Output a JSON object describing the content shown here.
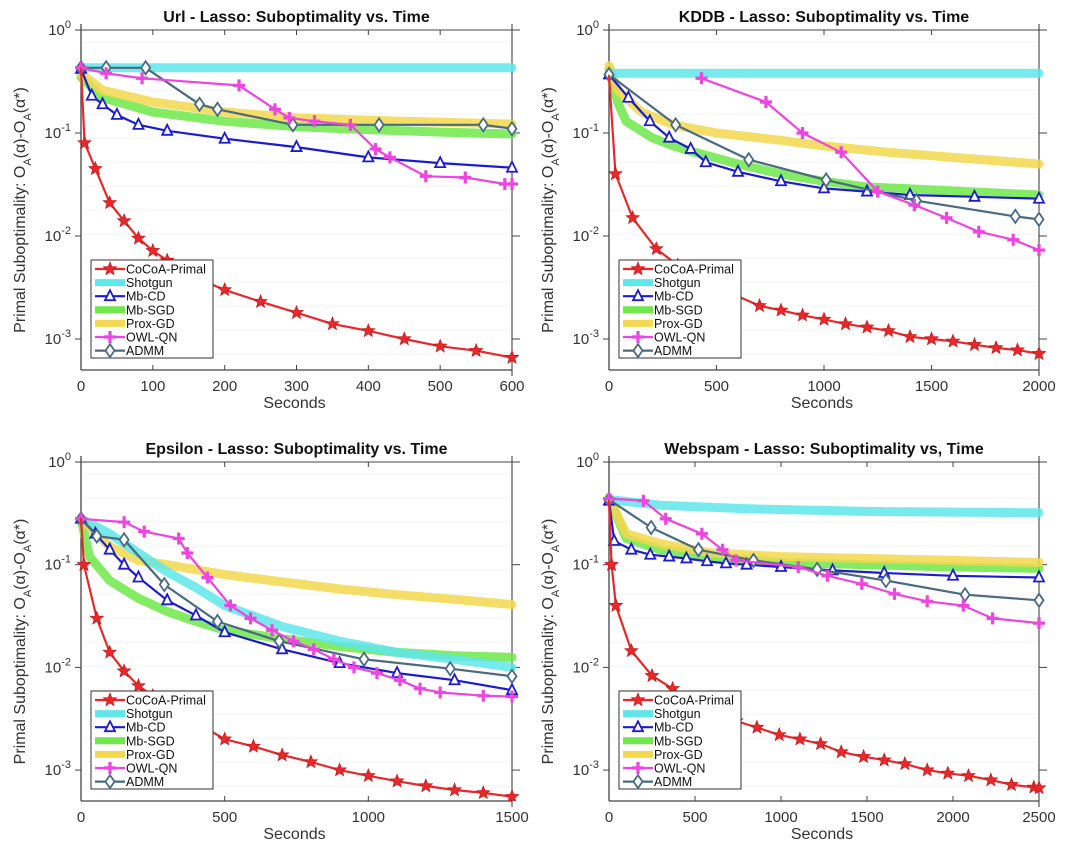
{
  "figure": {
    "legend_entries": [
      "CoCoA-Primal",
      "Shotgun",
      "Mb-CD",
      "Mb-SGD",
      "Prox-GD",
      "OWL-QN",
      "ADMM"
    ]
  },
  "series_styles": {
    "CoCoA-Primal": {
      "color": "#e8282a",
      "marker": "star"
    },
    "Shotgun": {
      "color": "#5ee6ea",
      "marker": "none"
    },
    "Mb-CD": {
      "color": "#1c1ccf",
      "marker": "triangle"
    },
    "Mb-SGD": {
      "color": "#6ee84a",
      "marker": "none"
    },
    "Prox-GD": {
      "color": "#f2d84e",
      "marker": "none"
    },
    "OWL-QN": {
      "color": "#ee44e0",
      "marker": "plus"
    },
    "ADMM": {
      "color": "#4a6a80",
      "marker": "diamond"
    }
  },
  "chart_data": [
    {
      "type": "line",
      "title": "Url - Lasso: Suboptimality vs. Time",
      "xlabel": "Seconds",
      "ylabel": "Primal Suboptimality: O_A(α)-O_A(α*)",
      "xscale": "linear",
      "yscale": "log",
      "xlim": [
        0,
        600
      ],
      "ylim": [
        0.0005,
        1
      ],
      "xticks": [
        "0",
        "100",
        "200",
        "300",
        "400",
        "500",
        "600"
      ],
      "xtick_values": [
        0,
        100,
        200,
        300,
        400,
        500,
        600
      ],
      "yticks": [
        "10^0",
        "10^-1",
        "10^-2",
        "10^-3"
      ],
      "ytick_values": [
        1,
        0.1,
        0.01,
        0.001
      ],
      "grid": false,
      "legend": "bottom-left",
      "series": [
        {
          "name": "CoCoA-Primal",
          "x": [
            0,
            5,
            20,
            40,
            60,
            80,
            100,
            120,
            150,
            200,
            250,
            300,
            350,
            400,
            450,
            500,
            550,
            600
          ],
          "y": [
            0.42,
            0.08,
            0.045,
            0.021,
            0.014,
            0.0095,
            0.0072,
            0.0058,
            0.0042,
            0.003,
            0.0023,
            0.0018,
            0.0014,
            0.0012,
            0.001,
            0.00085,
            0.00077,
            0.00066
          ]
        },
        {
          "name": "Shotgun",
          "x": [
            0,
            600
          ],
          "y": [
            0.43,
            0.43
          ]
        },
        {
          "name": "Mb-CD",
          "x": [
            0,
            15,
            30,
            50,
            80,
            120,
            200,
            300,
            400,
            500,
            600
          ],
          "y": [
            0.42,
            0.23,
            0.19,
            0.15,
            0.12,
            0.105,
            0.088,
            0.073,
            0.058,
            0.051,
            0.046
          ]
        },
        {
          "name": "Mb-SGD",
          "x": [
            0,
            30,
            100,
            200,
            300,
            400,
            500,
            600
          ],
          "y": [
            0.35,
            0.22,
            0.16,
            0.13,
            0.115,
            0.108,
            0.102,
            0.098
          ]
        },
        {
          "name": "Prox-GD",
          "x": [
            0,
            30,
            100,
            200,
            300,
            400,
            500,
            600
          ],
          "y": [
            0.38,
            0.26,
            0.2,
            0.16,
            0.14,
            0.133,
            0.127,
            0.122
          ]
        },
        {
          "name": "OWL-QN",
          "x": [
            0,
            35,
            85,
            220,
            270,
            290,
            325,
            375,
            410,
            430,
            480,
            535,
            590,
            600
          ],
          "y": [
            0.43,
            0.38,
            0.34,
            0.29,
            0.17,
            0.14,
            0.13,
            0.12,
            0.07,
            0.058,
            0.038,
            0.037,
            0.032,
            0.032
          ]
        },
        {
          "name": "ADMM",
          "x": [
            0,
            35,
            90,
            165,
            190,
            295,
            415,
            560,
            600
          ],
          "y": [
            0.43,
            0.43,
            0.43,
            0.19,
            0.17,
            0.12,
            0.12,
            0.12,
            0.11
          ]
        }
      ]
    },
    {
      "type": "line",
      "title": "KDDB - Lasso: Suboptimality vs. Time",
      "xlabel": "Seconds",
      "ylabel": "Primal Suboptimality: O_A(α)-O_A(α*)",
      "xscale": "linear",
      "yscale": "log",
      "xlim": [
        0,
        2000
      ],
      "ylim": [
        0.0005,
        1
      ],
      "xticks": [
        "0",
        "500",
        "1000",
        "1500",
        "2000"
      ],
      "xtick_values": [
        0,
        500,
        1000,
        1500,
        2000
      ],
      "yticks": [
        "10^0",
        "10^-1",
        "10^-2",
        "10^-3"
      ],
      "ytick_values": [
        1,
        0.1,
        0.01,
        0.001
      ],
      "grid": false,
      "legend": "bottom-left",
      "series": [
        {
          "name": "CoCoA-Primal",
          "x": [
            0,
            30,
            110,
            220,
            320,
            500,
            700,
            800,
            900,
            1000,
            1100,
            1200,
            1300,
            1400,
            1500,
            1600,
            1700,
            1800,
            1900,
            2000
          ],
          "y": [
            0.36,
            0.04,
            0.015,
            0.0075,
            0.0052,
            0.0032,
            0.0021,
            0.0019,
            0.0017,
            0.00155,
            0.0014,
            0.0013,
            0.0012,
            0.00105,
            0.001,
            0.00095,
            0.00088,
            0.00082,
            0.00078,
            0.00072
          ]
        },
        {
          "name": "Shotgun",
          "x": [
            0,
            2000
          ],
          "y": [
            0.38,
            0.38
          ]
        },
        {
          "name": "Mb-CD",
          "x": [
            0,
            90,
            190,
            280,
            380,
            450,
            600,
            800,
            1000,
            1200,
            1400,
            1700,
            2000
          ],
          "y": [
            0.37,
            0.22,
            0.13,
            0.09,
            0.07,
            0.052,
            0.042,
            0.034,
            0.029,
            0.027,
            0.025,
            0.024,
            0.023
          ]
        },
        {
          "name": "Mb-SGD",
          "x": [
            0,
            40,
            80,
            200,
            300,
            400,
            600,
            800,
            1000,
            1200,
            1500,
            2000
          ],
          "y": [
            0.42,
            0.2,
            0.13,
            0.09,
            0.075,
            0.065,
            0.05,
            0.04,
            0.034,
            0.03,
            0.028,
            0.025
          ]
        },
        {
          "name": "Prox-GD",
          "x": [
            0,
            40,
            150,
            300,
            500,
            800,
            1000,
            1300,
            1600,
            2000
          ],
          "y": [
            0.45,
            0.26,
            0.16,
            0.12,
            0.1,
            0.085,
            0.075,
            0.065,
            0.058,
            0.05
          ]
        },
        {
          "name": "OWL-QN",
          "x": [
            430,
            730,
            900,
            1080,
            1250,
            1420,
            1570,
            1720,
            1880,
            2000
          ],
          "y": [
            0.34,
            0.2,
            0.1,
            0.065,
            0.027,
            0.02,
            0.015,
            0.011,
            0.0092,
            0.0073
          ]
        },
        {
          "name": "ADMM",
          "x": [
            0,
            310,
            650,
            1010,
            1430,
            1890,
            2000
          ],
          "y": [
            0.37,
            0.12,
            0.055,
            0.035,
            0.022,
            0.0155,
            0.0145
          ]
        }
      ]
    },
    {
      "type": "line",
      "title": "Epsilon - Lasso: Suboptimality vs. Time",
      "xlabel": "Seconds",
      "ylabel": "Primal Suboptimality: O_A(α)-O_A(α*)",
      "xscale": "linear",
      "yscale": "log",
      "xlim": [
        0,
        1500
      ],
      "ylim": [
        0.0005,
        1
      ],
      "xticks": [
        "0",
        "500",
        "1000",
        "1500"
      ],
      "xtick_values": [
        0,
        500,
        1000,
        1500
      ],
      "yticks": [
        "10^0",
        "10^-1",
        "10^-2",
        "10^-3"
      ],
      "ytick_values": [
        1,
        0.1,
        0.01,
        0.001
      ],
      "grid": false,
      "legend": "bottom-left",
      "series": [
        {
          "name": "CoCoA-Primal",
          "x": [
            0,
            10,
            55,
            100,
            150,
            200,
            250,
            350,
            500,
            600,
            700,
            800,
            900,
            1000,
            1100,
            1200,
            1300,
            1400,
            1500
          ],
          "y": [
            0.28,
            0.1,
            0.03,
            0.014,
            0.0092,
            0.0066,
            0.0053,
            0.0035,
            0.002,
            0.0017,
            0.0014,
            0.0012,
            0.001,
            0.00088,
            0.00078,
            0.0007,
            0.00064,
            0.0006,
            0.00055
          ]
        },
        {
          "name": "Shotgun",
          "x": [
            0,
            100,
            200,
            300,
            400,
            500,
            700,
            900,
            1100,
            1300,
            1500
          ],
          "y": [
            0.28,
            0.2,
            0.13,
            0.085,
            0.06,
            0.04,
            0.025,
            0.018,
            0.014,
            0.012,
            0.01
          ]
        },
        {
          "name": "Mb-CD",
          "x": [
            0,
            50,
            100,
            150,
            200,
            300,
            400,
            500,
            700,
            900,
            1100,
            1300,
            1500
          ],
          "y": [
            0.28,
            0.2,
            0.14,
            0.1,
            0.075,
            0.045,
            0.032,
            0.022,
            0.015,
            0.011,
            0.0088,
            0.0075,
            0.006
          ]
        },
        {
          "name": "Mb-SGD",
          "x": [
            0,
            30,
            100,
            200,
            300,
            400,
            500,
            700,
            900,
            1100,
            1300,
            1500
          ],
          "y": [
            0.28,
            0.12,
            0.07,
            0.047,
            0.035,
            0.028,
            0.023,
            0.019,
            0.016,
            0.014,
            0.013,
            0.0125
          ]
        },
        {
          "name": "Prox-GD",
          "x": [
            0,
            100,
            200,
            300,
            500,
            700,
            900,
            1100,
            1300,
            1500
          ],
          "y": [
            0.28,
            0.15,
            0.11,
            0.1,
            0.08,
            0.068,
            0.058,
            0.051,
            0.046,
            0.041
          ]
        },
        {
          "name": "OWL-QN",
          "x": [
            0,
            150,
            220,
            340,
            370,
            440,
            520,
            590,
            665,
            740,
            810,
            880,
            950,
            1030,
            1110,
            1180,
            1250,
            1400,
            1500
          ],
          "y": [
            0.28,
            0.26,
            0.21,
            0.18,
            0.13,
            0.075,
            0.04,
            0.03,
            0.023,
            0.018,
            0.015,
            0.012,
            0.01,
            0.0088,
            0.0075,
            0.0062,
            0.0057,
            0.0053,
            0.0052
          ]
        },
        {
          "name": "ADMM",
          "x": [
            0,
            55,
            150,
            290,
            475,
            690,
            985,
            1285,
            1500
          ],
          "y": [
            0.28,
            0.19,
            0.175,
            0.064,
            0.028,
            0.018,
            0.012,
            0.0097,
            0.0082
          ]
        }
      ]
    },
    {
      "type": "line",
      "title": "Webspam - Lasso: Suboptimality vs, Time",
      "xlabel": "Seconds",
      "ylabel": "Primal Suboptimality: O_A(α)-O_A(α*)",
      "xscale": "linear",
      "yscale": "log",
      "xlim": [
        0,
        2500
      ],
      "ylim": [
        0.0005,
        1
      ],
      "xticks": [
        "0",
        "500",
        "1000",
        "1500",
        "2000",
        "2500"
      ],
      "xtick_values": [
        0,
        500,
        1000,
        1500,
        2000,
        2500
      ],
      "yticks": [
        "10^0",
        "10^-1",
        "10^-2",
        "10^-3"
      ],
      "ytick_values": [
        1,
        0.1,
        0.01,
        0.001
      ],
      "grid": false,
      "legend": "bottom-left",
      "series": [
        {
          "name": "CoCoA-Primal",
          "x": [
            0,
            15,
            40,
            130,
            250,
            370,
            500,
            620,
            740,
            860,
            990,
            1110,
            1230,
            1350,
            1480,
            1600,
            1720,
            1850,
            1970,
            2090,
            2220,
            2340,
            2470,
            2500
          ],
          "y": [
            0.42,
            0.1,
            0.04,
            0.0145,
            0.0083,
            0.0062,
            0.0045,
            0.0035,
            0.003,
            0.0026,
            0.0022,
            0.002,
            0.0018,
            0.0015,
            0.00135,
            0.00125,
            0.00115,
            0.001,
            0.00093,
            0.00088,
            0.0008,
            0.00072,
            0.00068,
            0.00067
          ]
        },
        {
          "name": "Shotgun",
          "x": [
            0,
            300,
            800,
            1500,
            2500
          ],
          "y": [
            0.43,
            0.38,
            0.35,
            0.33,
            0.32
          ]
        },
        {
          "name": "Mb-CD",
          "x": [
            0,
            30,
            130,
            240,
            350,
            450,
            570,
            680,
            800,
            1000,
            1300,
            1600,
            2000,
            2500
          ],
          "y": [
            0.42,
            0.17,
            0.14,
            0.125,
            0.12,
            0.115,
            0.108,
            0.103,
            0.1,
            0.095,
            0.088,
            0.083,
            0.078,
            0.075
          ]
        },
        {
          "name": "Mb-SGD",
          "x": [
            0,
            100,
            300,
            600,
            1000,
            1500,
            2000,
            2500
          ],
          "y": [
            0.45,
            0.18,
            0.14,
            0.12,
            0.105,
            0.1,
            0.095,
            0.092
          ]
        },
        {
          "name": "Prox-GD",
          "x": [
            0,
            100,
            300,
            600,
            1000,
            1500,
            2000,
            2500
          ],
          "y": [
            0.45,
            0.2,
            0.16,
            0.13,
            0.12,
            0.115,
            0.11,
            0.105
          ]
        },
        {
          "name": "OWL-QN",
          "x": [
            0,
            200,
            330,
            540,
            660,
            740,
            1100,
            1270,
            1470,
            1660,
            1850,
            2060,
            2230,
            2500
          ],
          "y": [
            0.44,
            0.42,
            0.28,
            0.2,
            0.14,
            0.11,
            0.095,
            0.078,
            0.065,
            0.052,
            0.044,
            0.04,
            0.03,
            0.027
          ]
        },
        {
          "name": "ADMM",
          "x": [
            0,
            245,
            520,
            840,
            1210,
            1610,
            2070,
            2500
          ],
          "y": [
            0.43,
            0.23,
            0.14,
            0.11,
            0.09,
            0.07,
            0.051,
            0.045
          ]
        }
      ]
    }
  ]
}
